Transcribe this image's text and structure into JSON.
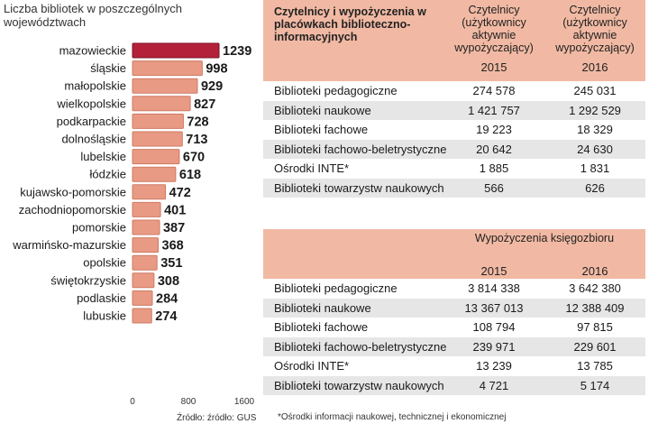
{
  "chart_data": {
    "type": "bar",
    "orientation": "horizontal",
    "title": "Liczba bibliotek w poszczególnych województwach",
    "categories": [
      "mazowieckie",
      "śląskie",
      "małopolskie",
      "wielkopolskie",
      "podkarpackie",
      "dolnośląskie",
      "lubelskie",
      "łódzkie",
      "kujawsko-pomorskie",
      "zachodniopomorskie",
      "pomorskie",
      "warmińsko-mazurskie",
      "opolskie",
      "świętokrzyskie",
      "podlaskie",
      "lubuskie"
    ],
    "values": [
      1239,
      998,
      929,
      827,
      728,
      713,
      670,
      618,
      472,
      401,
      387,
      368,
      351,
      308,
      284,
      274
    ],
    "xticks": [
      "0",
      "800",
      "1600"
    ],
    "xlim": [
      0,
      1600
    ],
    "source": "Źródło: źródło: GUS",
    "colors": {
      "highlight": "#b3203a",
      "bar": "#e89a84",
      "bar_edge": "#cf7a64"
    }
  },
  "table_readers": {
    "title": "Czytelnicy i wypożyczenia w placówkach biblioteczno-informacyjnych",
    "col_header": "Czytelnicy (użytkownicy aktywnie wypożyczający)",
    "year1": "2015",
    "year2": "2016",
    "rows": [
      {
        "name": "Biblioteki pedagogiczne",
        "v2015": "274 578",
        "v2016": "245 031"
      },
      {
        "name": "Biblioteki naukowe",
        "v2015": "1 421 757",
        "v2016": "1 292 529"
      },
      {
        "name": "Biblioteki fachowe",
        "v2015": "19 223",
        "v2016": "18 329"
      },
      {
        "name": "Biblioteki fachowo-beletrystyczne",
        "v2015": "20 642",
        "v2016": "24 630"
      },
      {
        "name": "Ośrodki INTE*",
        "v2015": "1 885",
        "v2016": "1 831"
      },
      {
        "name": "Biblioteki towarzystw naukowych",
        "v2015": "566",
        "v2016": "626"
      }
    ]
  },
  "table_loans": {
    "title": "Wypożyczenia księgozbioru",
    "year1": "2015",
    "year2": "2016",
    "rows": [
      {
        "name": "Biblioteki pedagogiczne",
        "v2015": "3 814 338",
        "v2016": "3 642 380"
      },
      {
        "name": "Biblioteki naukowe",
        "v2015": "13 367 013",
        "v2016": "12 388 409"
      },
      {
        "name": "Biblioteki fachowe",
        "v2015": "108 794",
        "v2016": "97 815"
      },
      {
        "name": "Biblioteki fachowo-beletrystyczne",
        "v2015": "239 971",
        "v2016": "229 601"
      },
      {
        "name": "Ośrodki INTE*",
        "v2015": "13 239",
        "v2016": "13 785"
      },
      {
        "name": "Biblioteki towarzystw naukowych",
        "v2015": "4 721",
        "v2016": "5 174"
      }
    ]
  },
  "footnote": "*Ośrodki informacji naukowej, technicznej i ekonomicznej"
}
